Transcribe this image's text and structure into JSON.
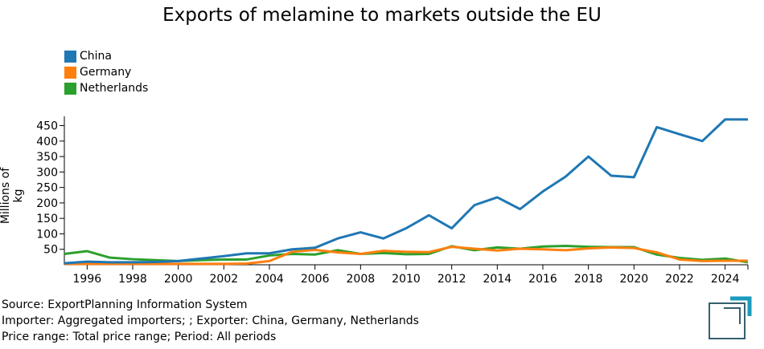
{
  "chart_data": {
    "type": "line",
    "title": "Exports of melamine to markets outside the EU",
    "ylabel": "Millions of kg",
    "xlabel": "",
    "ylim": [
      0,
      480
    ],
    "xlim": [
      1995,
      2025
    ],
    "yticks": [
      50,
      100,
      150,
      200,
      250,
      300,
      350,
      400,
      450
    ],
    "xticks": [
      1996,
      1998,
      2000,
      2002,
      2004,
      2006,
      2008,
      2010,
      2012,
      2014,
      2016,
      2018,
      2020,
      2022,
      2024
    ],
    "legend_position": "top-left",
    "x": [
      1995,
      1996,
      1997,
      1998,
      1999,
      2000,
      2001,
      2002,
      2003,
      2004,
      2005,
      2006,
      2007,
      2008,
      2009,
      2010,
      2011,
      2012,
      2013,
      2014,
      2015,
      2016,
      2017,
      2018,
      2019,
      2020,
      2021,
      2022,
      2023,
      2024,
      2025
    ],
    "series": [
      {
        "name": "China",
        "color": "#1f77b4",
        "values": [
          5,
          10,
          8,
          8,
          9,
          12,
          20,
          28,
          37,
          37,
          50,
          55,
          85,
          105,
          85,
          118,
          160,
          118,
          193,
          218,
          180,
          237,
          285,
          350,
          288,
          283,
          445,
          422,
          400,
          470,
          470
        ]
      },
      {
        "name": "Germany",
        "color": "#ff7f0e",
        "values": [
          3,
          3,
          3,
          3,
          3,
          3,
          3,
          3,
          4,
          12,
          42,
          48,
          40,
          35,
          45,
          42,
          41,
          58,
          52,
          46,
          52,
          50,
          47,
          53,
          56,
          54,
          40,
          17,
          12,
          13,
          13
        ]
      },
      {
        "name": "Netherlands",
        "color": "#2ca02c",
        "values": [
          35,
          44,
          23,
          18,
          15,
          12,
          15,
          17,
          17,
          30,
          35,
          33,
          47,
          35,
          38,
          34,
          35,
          60,
          47,
          56,
          52,
          59,
          61,
          58,
          57,
          57,
          33,
          22,
          16,
          20,
          8
        ]
      }
    ]
  },
  "source": {
    "line1": "Source: ExportPlanning Information System",
    "line2": "Importer: Aggregated importers; ; Exporter: China, Germany, Netherlands",
    "line3": "Price range: Total price range; Period: All periods"
  }
}
